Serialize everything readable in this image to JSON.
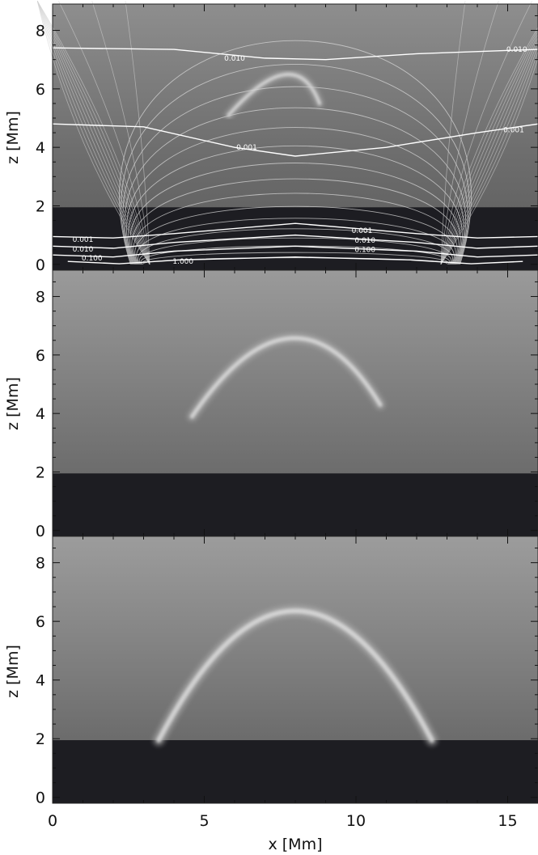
{
  "chart_data": [
    {
      "type": "heatmap",
      "panel": "top",
      "ylabel": "z [Mm]",
      "xlim": [
        0,
        16
      ],
      "ylim": [
        -0.2,
        8.9
      ],
      "y_ticks": [
        "0",
        "2",
        "4",
        "6",
        "8"
      ],
      "y_tick_values": [
        0,
        2,
        4,
        6,
        8
      ],
      "chromosphere_top_z": 1.95,
      "loop": {
        "x_left": 5.8,
        "x_right": 8.8,
        "apex_x": 8.0,
        "apex_z": 6.4
      },
      "field_line_contour_labels": [
        {
          "text": "0.010",
          "x": 6.0,
          "z": 7.05
        },
        {
          "text": "0.010",
          "x": 15.3,
          "z": 7.35
        },
        {
          "text": "0.001",
          "x": 6.4,
          "z": 4.0
        },
        {
          "text": "0.001",
          "x": 15.2,
          "z": 4.6
        },
        {
          "text": "0.001",
          "x": 1.0,
          "z": 0.85
        },
        {
          "text": "0.010",
          "x": 1.0,
          "z": 0.52
        },
        {
          "text": "0.100",
          "x": 1.3,
          "z": 0.22
        },
        {
          "text": "1.000",
          "x": 4.3,
          "z": 0.1
        },
        {
          "text": "0.001",
          "x": 10.2,
          "z": 1.15
        },
        {
          "text": "0.010",
          "x": 10.3,
          "z": 0.82
        },
        {
          "text": "0.100",
          "x": 10.3,
          "z": 0.5
        }
      ],
      "colors": {
        "chromosphere": "#1d1d22",
        "corona_top": "#8f8f8f",
        "contour": "#ffffff"
      }
    },
    {
      "type": "heatmap",
      "panel": "middle",
      "ylabel": "z [Mm]",
      "xlim": [
        0,
        16
      ],
      "ylim": [
        -0.2,
        8.9
      ],
      "y_ticks": [
        "0",
        "2",
        "4",
        "6",
        "8"
      ],
      "y_tick_values": [
        0,
        2,
        4,
        6,
        8
      ],
      "chromosphere_top_z": 1.95,
      "loop": {
        "x_left": 4.6,
        "x_right": 10.8,
        "apex_x": 8.0,
        "apex_z": 6.5
      },
      "colors": {
        "chromosphere": "#1d1d22",
        "corona_top": "#9a9a9a"
      }
    },
    {
      "type": "heatmap",
      "panel": "bottom",
      "ylabel": "z [Mm]",
      "xlabel": "x [Mm]",
      "xlim": [
        0,
        16
      ],
      "ylim": [
        -0.2,
        8.9
      ],
      "x_ticks": [
        "0",
        "5",
        "10",
        "15"
      ],
      "x_tick_values": [
        0,
        5,
        10,
        15
      ],
      "y_ticks": [
        "0",
        "2",
        "4",
        "6",
        "8"
      ],
      "y_tick_values": [
        0,
        2,
        4,
        6,
        8
      ],
      "chromosphere_top_z": 1.95,
      "loop": {
        "x_left": 3.5,
        "x_right": 12.5,
        "apex_x": 8.0,
        "apex_z": 6.4
      },
      "colors": {
        "chromosphere": "#1d1d22",
        "corona_top": "#9a9a9a"
      }
    }
  ]
}
